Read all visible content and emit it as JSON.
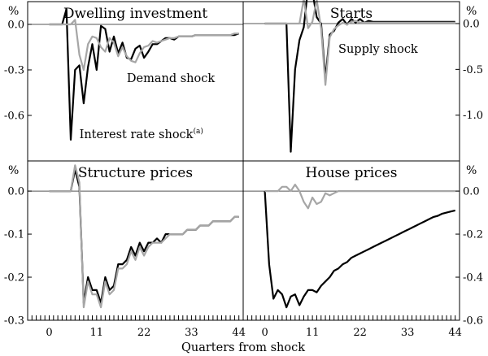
{
  "figure": {
    "xlabel": "Quarters from shock",
    "x_tick_labels": [
      "0",
      "11",
      "22",
      "33",
      "44"
    ]
  },
  "chart_data": [
    {
      "type": "line",
      "title": "Dwelling investment",
      "unit_label": "%",
      "axis_side": "left",
      "ylim": [
        -0.9,
        0.15
      ],
      "xlim": [
        -5,
        45
      ],
      "yticks": [
        0.0,
        -0.3,
        -0.6
      ],
      "ytick_labels": [
        "0.0",
        "-0.3",
        "-0.6"
      ],
      "x": [
        0,
        1,
        2,
        3,
        4,
        5,
        6,
        7,
        8,
        9,
        10,
        11,
        12,
        13,
        14,
        15,
        16,
        17,
        18,
        19,
        20,
        21,
        22,
        23,
        24,
        25,
        26,
        27,
        28,
        29,
        30,
        31,
        32,
        33,
        34,
        35,
        36,
        37,
        38,
        39,
        40,
        41,
        42,
        43,
        44
      ],
      "series": [
        {
          "name": "Interest rate shock",
          "color": "#000000",
          "values": [
            0,
            0,
            0,
            0,
            0.1,
            -0.76,
            -0.3,
            -0.27,
            -0.52,
            -0.28,
            -0.13,
            -0.3,
            -0.01,
            -0.03,
            -0.18,
            -0.08,
            -0.19,
            -0.12,
            -0.22,
            -0.23,
            -0.16,
            -0.14,
            -0.22,
            -0.18,
            -0.13,
            -0.13,
            -0.11,
            -0.09,
            -0.09,
            -0.1,
            -0.08,
            -0.08,
            -0.08,
            -0.08,
            -0.07,
            -0.07,
            -0.07,
            -0.07,
            -0.07,
            -0.07,
            -0.07,
            -0.07,
            -0.07,
            -0.07,
            -0.06
          ]
        },
        {
          "name": "Demand shock",
          "color": "#a6a6a6",
          "values": [
            0,
            0,
            0,
            0,
            0,
            0,
            0.03,
            -0.2,
            -0.3,
            -0.13,
            -0.08,
            -0.09,
            -0.15,
            -0.18,
            -0.09,
            -0.12,
            -0.21,
            -0.15,
            -0.21,
            -0.24,
            -0.25,
            -0.19,
            -0.15,
            -0.14,
            -0.11,
            -0.12,
            -0.11,
            -0.1,
            -0.09,
            -0.09,
            -0.08,
            -0.08,
            -0.08,
            -0.08,
            -0.07,
            -0.07,
            -0.07,
            -0.07,
            -0.07,
            -0.07,
            -0.07,
            -0.07,
            -0.07,
            -0.06,
            -0.06
          ]
        }
      ],
      "annotations": [
        {
          "text": "Demand shock",
          "x": 18,
          "y": -0.38
        },
        {
          "text": "Interest rate shock",
          "superscript": "(a)",
          "x": 7,
          "y": -0.75
        }
      ]
    },
    {
      "type": "line",
      "title": "Starts",
      "unit_label": "%",
      "axis_side": "right",
      "ylim": [
        -1.5,
        0.24
      ],
      "xlim": [
        -5,
        45
      ],
      "yticks": [
        0.0,
        -0.5,
        -1.0
      ],
      "ytick_labels": [
        "0.0",
        "-0.5",
        "-1.0"
      ],
      "x": [
        0,
        1,
        2,
        3,
        4,
        5,
        6,
        7,
        8,
        9,
        10,
        11,
        12,
        13,
        14,
        15,
        16,
        17,
        18,
        19,
        20,
        21,
        22,
        23,
        24,
        25,
        26,
        27,
        28,
        29,
        30,
        31,
        32,
        33,
        34,
        35,
        36,
        37,
        38,
        39,
        40,
        41,
        42,
        43,
        44
      ],
      "series": [
        {
          "name": "Interest rate shock",
          "color": "#000000",
          "values": [
            0,
            0,
            0,
            0,
            0,
            0,
            -1.4,
            -0.5,
            -0.18,
            -0.04,
            0.4,
            0.35,
            0.07,
            0,
            -0.6,
            -0.12,
            -0.08,
            0.01,
            0.05,
            -0.01,
            0.05,
            0.01,
            0.05,
            0.01,
            0.03,
            0.02,
            0.02,
            0.02,
            0.02,
            0.02,
            0.02,
            0.02,
            0.02,
            0.02,
            0.02,
            0.02,
            0.02,
            0.02,
            0.02,
            0.02,
            0.02,
            0.02,
            0.02,
            0.02,
            0.02
          ]
        },
        {
          "name": "Supply shock",
          "color": "#a6a6a6",
          "values": [
            0,
            0,
            0,
            0,
            0,
            0,
            0,
            0,
            0,
            0.27,
            -0.05,
            0.02,
            0.26,
            -0.05,
            -0.67,
            -0.15,
            -0.06,
            -0.02,
            0.01,
            -0.01,
            0.02,
            0.03,
            0.01,
            0.01,
            0.01,
            0.01,
            0.01,
            0.01,
            0.01,
            0.01,
            0.01,
            0.01,
            0.01,
            0.01,
            0.01,
            0.01,
            0.01,
            0.01,
            0.01,
            0.01,
            0.01,
            0.01,
            0.01,
            0.01,
            0.01
          ]
        }
      ],
      "annotations": [
        {
          "text": "Supply shock",
          "x": 17,
          "y": -0.32
        }
      ]
    },
    {
      "type": "line",
      "title": "Structure prices",
      "unit_label": "%",
      "axis_side": "left",
      "ylim": [
        -0.3,
        0.07
      ],
      "xlim": [
        -5,
        45
      ],
      "yticks": [
        0.0,
        -0.1,
        -0.2,
        -0.3
      ],
      "ytick_labels": [
        "0.0",
        "-0.1",
        "-0.2",
        "-0.3"
      ],
      "x": [
        0,
        1,
        2,
        3,
        4,
        5,
        6,
        7,
        8,
        9,
        10,
        11,
        12,
        13,
        14,
        15,
        16,
        17,
        18,
        19,
        20,
        21,
        22,
        23,
        24,
        25,
        26,
        27,
        28,
        29,
        30,
        31,
        32,
        33,
        34,
        35,
        36,
        37,
        38,
        39,
        40,
        41,
        42,
        43,
        44
      ],
      "series": [
        {
          "name": "Interest rate shock",
          "color": "#000000",
          "values": [
            0,
            0,
            0,
            0,
            0,
            0,
            0.05,
            0.01,
            -0.26,
            -0.2,
            -0.23,
            -0.23,
            -0.26,
            -0.2,
            -0.23,
            -0.22,
            -0.17,
            -0.17,
            -0.16,
            -0.13,
            -0.15,
            -0.12,
            -0.14,
            -0.12,
            -0.12,
            -0.11,
            -0.12,
            -0.1,
            -0.1,
            -0.1,
            -0.1,
            -0.1,
            -0.09,
            -0.09,
            -0.09,
            -0.08,
            -0.08,
            -0.08,
            -0.07,
            -0.07,
            -0.07,
            -0.07,
            -0.07,
            -0.06,
            -0.06
          ]
        },
        {
          "name": "Demand shock",
          "color": "#a6a6a6",
          "values": [
            0,
            0,
            0,
            0,
            0,
            0,
            0.06,
            0.02,
            -0.27,
            -0.21,
            -0.24,
            -0.24,
            -0.27,
            -0.21,
            -0.24,
            -0.23,
            -0.18,
            -0.18,
            -0.17,
            -0.14,
            -0.16,
            -0.13,
            -0.15,
            -0.13,
            -0.12,
            -0.12,
            -0.12,
            -0.11,
            -0.1,
            -0.1,
            -0.1,
            -0.1,
            -0.09,
            -0.09,
            -0.09,
            -0.08,
            -0.08,
            -0.08,
            -0.07,
            -0.07,
            -0.07,
            -0.07,
            -0.07,
            -0.06,
            -0.06
          ]
        }
      ],
      "annotations": []
    },
    {
      "type": "line",
      "title": "House prices",
      "unit_label": "%",
      "axis_side": "right",
      "ylim": [
        -0.6,
        0.14
      ],
      "xlim": [
        -5,
        45
      ],
      "yticks": [
        0.0,
        -0.2,
        -0.4,
        -0.6
      ],
      "ytick_labels": [
        "0.0",
        "-0.2",
        "-0.4",
        "-0.6"
      ],
      "x": [
        0,
        1,
        2,
        3,
        4,
        5,
        6,
        7,
        8,
        9,
        10,
        11,
        12,
        13,
        14,
        15,
        16,
        17,
        18,
        19,
        20,
        21,
        22,
        23,
        24,
        25,
        26,
        27,
        28,
        29,
        30,
        31,
        32,
        33,
        34,
        35,
        36,
        37,
        38,
        39,
        40,
        41,
        42,
        43,
        44
      ],
      "series": [
        {
          "name": "Interest rate shock",
          "color": "#000000",
          "values": [
            0,
            -0.34,
            -0.5,
            -0.46,
            -0.48,
            -0.54,
            -0.49,
            -0.48,
            -0.53,
            -0.49,
            -0.46,
            -0.46,
            -0.47,
            -0.44,
            -0.42,
            -0.4,
            -0.37,
            -0.36,
            -0.34,
            -0.33,
            -0.31,
            -0.3,
            -0.29,
            -0.28,
            -0.27,
            -0.26,
            -0.25,
            -0.24,
            -0.23,
            -0.22,
            -0.21,
            -0.2,
            -0.19,
            -0.18,
            -0.17,
            -0.16,
            -0.15,
            -0.14,
            -0.13,
            -0.12,
            -0.115,
            -0.105,
            -0.1,
            -0.095,
            -0.09
          ]
        },
        {
          "name": "Demand shock",
          "color": "#a6a6a6",
          "values": [
            0,
            0,
            0,
            0,
            0.02,
            0.02,
            0,
            0.03,
            0,
            -0.05,
            -0.08,
            -0.03,
            -0.06,
            -0.05,
            -0.01,
            -0.02,
            -0.01,
            0,
            0,
            0,
            0,
            0,
            0,
            0,
            0,
            0,
            0,
            0,
            0,
            0,
            0,
            0,
            0,
            0,
            0,
            0,
            0,
            0,
            0,
            0,
            0,
            0,
            0,
            0,
            0
          ]
        }
      ],
      "annotations": []
    }
  ]
}
